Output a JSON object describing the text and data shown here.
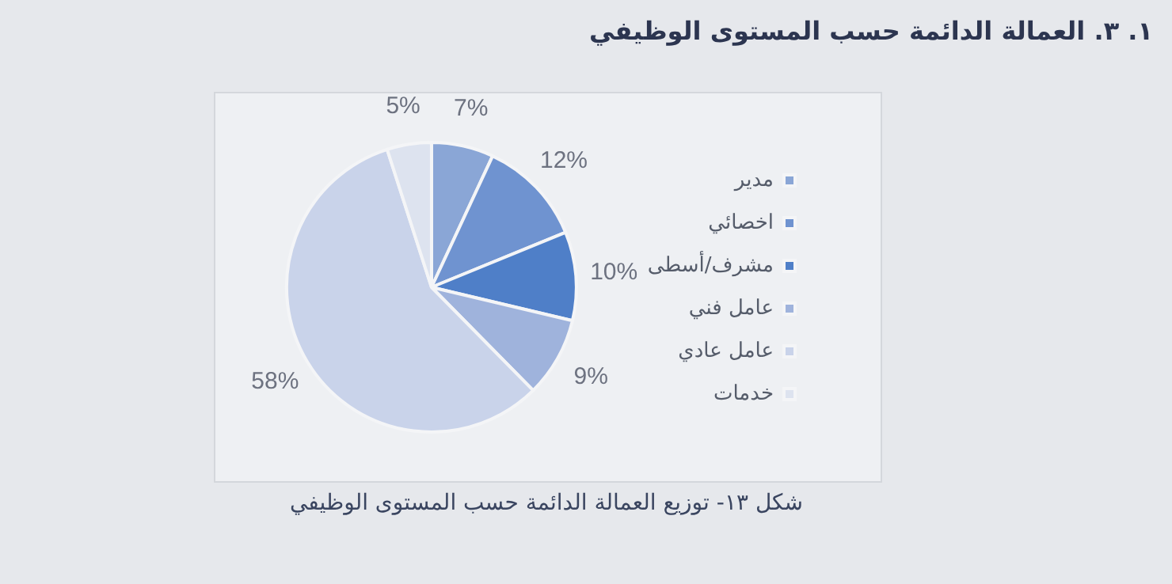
{
  "chart_data": {
    "type": "pie",
    "title": "١. ٣. العمالة الدائمة حسب المستوى الوظيفي",
    "categories": [
      "مدير",
      "اخصائي",
      "مشرف/أسطى",
      "عامل فني",
      "عامل عادي",
      "خدمات"
    ],
    "values": [
      7,
      12,
      10,
      9,
      58,
      5
    ],
    "value_labels": [
      "7%",
      "12%",
      "10%",
      "9%",
      "58%",
      "5%"
    ],
    "colors": [
      "#8aa6d6",
      "#6f93d0",
      "#4f7fc8",
      "#9fb3dc",
      "#c9d3ea",
      "#dde3ef"
    ],
    "legend": "right",
    "annotations": [
      "شكل ١٣- توزيع العمالة الدائمة حسب المستوى الوظيفي"
    ]
  }
}
